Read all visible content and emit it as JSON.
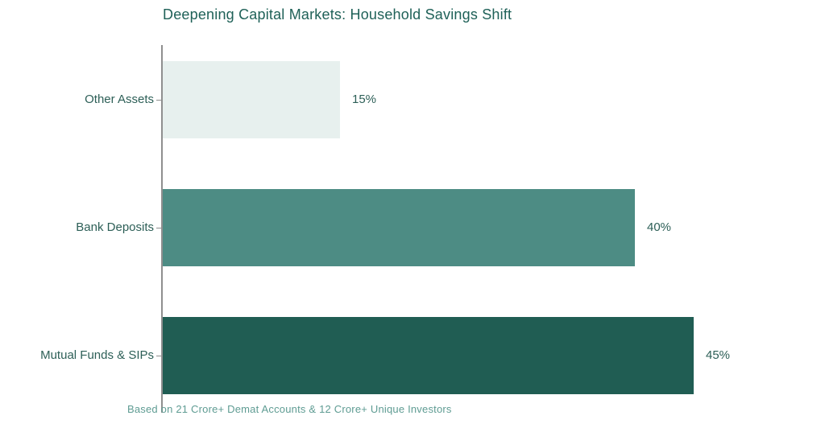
{
  "title": "Deepening Capital Markets: Household Savings Shift",
  "footer": "Based on 21 Crore+ Demat Accounts & 12 Crore+ Unique Investors",
  "colors": {
    "title_text": "#1f6158",
    "category_label_text": "#2d5f57",
    "value_label_text": "#2d5f57",
    "footer_text": "#5f9c93",
    "axis_line": "#8f8f8f",
    "tick_mark": "#8f8f8f",
    "background": "#ffffff"
  },
  "chart_data": {
    "type": "bar",
    "orientation": "horizontal",
    "title": "Deepening Capital Markets: Household Savings Shift",
    "categories": [
      "Other Assets",
      "Bank Deposits",
      "Mutual Funds & SIPs"
    ],
    "values": [
      15,
      40,
      45
    ],
    "value_labels": [
      "15%",
      "40%",
      "45%"
    ],
    "bar_colors": [
      "#e7f0ee",
      "#4d8c84",
      "#205d53"
    ],
    "xlabel": "",
    "ylabel": "",
    "xlim": [
      0,
      56
    ],
    "grid": false,
    "legend": false,
    "annotation": "Based on 21 Crore+ Demat Accounts & 12 Crore+ Unique Investors"
  }
}
